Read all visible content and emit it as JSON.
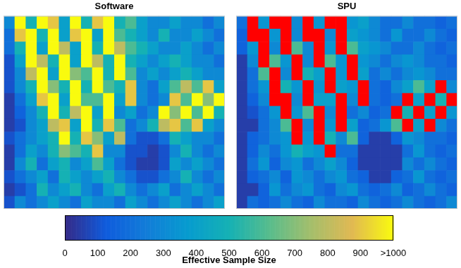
{
  "chart_data": [
    {
      "type": "heatmap",
      "title": "Software",
      "tick_labels": false,
      "cells": [
        [
          300,
          1000,
          500,
          1000,
          900,
          400,
          1000,
          500,
          900,
          1000,
          500,
          600,
          400,
          300,
          300,
          400,
          300,
          300,
          200,
          300
        ],
        [
          200,
          900,
          1000,
          500,
          1000,
          400,
          900,
          1000,
          400,
          1000,
          600,
          500,
          400,
          300,
          500,
          300,
          300,
          400,
          300,
          200
        ],
        [
          200,
          500,
          1000,
          400,
          1000,
          800,
          400,
          1000,
          500,
          1000,
          800,
          600,
          500,
          400,
          300,
          300,
          400,
          300,
          200,
          300
        ],
        [
          100,
          400,
          1000,
          800,
          500,
          1000,
          400,
          1000,
          800,
          500,
          1000,
          500,
          400,
          300,
          400,
          500,
          400,
          300,
          300,
          200
        ],
        [
          100,
          300,
          800,
          1000,
          400,
          1000,
          700,
          600,
          1000,
          500,
          1000,
          600,
          300,
          400,
          300,
          400,
          500,
          400,
          300,
          300
        ],
        [
          100,
          300,
          500,
          1000,
          700,
          500,
          1000,
          500,
          1000,
          600,
          500,
          900,
          300,
          200,
          400,
          600,
          800,
          600,
          900,
          400
        ],
        [
          50,
          200,
          400,
          900,
          1000,
          400,
          1000,
          600,
          600,
          1000,
          400,
          900,
          300,
          200,
          300,
          900,
          600,
          1000,
          700,
          1000
        ],
        [
          50,
          150,
          300,
          500,
          1000,
          500,
          800,
          1000,
          400,
          1000,
          300,
          400,
          200,
          300,
          1000,
          700,
          1000,
          600,
          1000,
          500
        ],
        [
          50,
          100,
          300,
          400,
          800,
          900,
          400,
          1000,
          500,
          900,
          600,
          200,
          300,
          500,
          800,
          900,
          600,
          900,
          400,
          300
        ],
        [
          100,
          200,
          300,
          400,
          500,
          1000,
          500,
          900,
          700,
          400,
          800,
          200,
          100,
          100,
          200,
          500,
          400,
          300,
          300,
          200
        ],
        [
          50,
          200,
          400,
          300,
          500,
          700,
          600,
          500,
          900,
          300,
          300,
          100,
          100,
          50,
          100,
          300,
          500,
          300,
          200,
          300
        ],
        [
          50,
          300,
          500,
          200,
          400,
          500,
          300,
          400,
          600,
          400,
          200,
          100,
          50,
          50,
          100,
          400,
          300,
          400,
          300,
          200
        ],
        [
          100,
          200,
          300,
          400,
          200,
          500,
          400,
          300,
          400,
          500,
          300,
          200,
          100,
          100,
          200,
          300,
          500,
          300,
          200,
          300
        ],
        [
          50,
          100,
          200,
          500,
          300,
          400,
          500,
          300,
          200,
          400,
          500,
          300,
          200,
          300,
          400,
          200,
          300,
          400,
          300,
          200
        ],
        [
          100,
          300,
          200,
          300,
          400,
          300,
          200,
          400,
          300,
          300,
          200,
          400,
          300,
          200,
          300,
          400,
          300,
          200,
          300,
          400
        ]
      ]
    },
    {
      "type": "heatmap",
      "title": "SPU",
      "tick_labels": false,
      "color": "#ff0000",
      "cells": [
        [
          200,
          null,
          350,
          null,
          null,
          300,
          null,
          350,
          null,
          null,
          350,
          400,
          300,
          200,
          200,
          300,
          200,
          200,
          150,
          200
        ],
        [
          150,
          null,
          null,
          350,
          null,
          300,
          null,
          null,
          300,
          null,
          400,
          350,
          300,
          200,
          350,
          200,
          200,
          300,
          200,
          150
        ],
        [
          150,
          350,
          null,
          300,
          null,
          600,
          300,
          null,
          350,
          null,
          600,
          400,
          350,
          300,
          200,
          200,
          300,
          200,
          150,
          200
        ],
        [
          50,
          300,
          null,
          600,
          350,
          null,
          300,
          null,
          600,
          350,
          null,
          350,
          300,
          200,
          300,
          350,
          300,
          200,
          200,
          150
        ],
        [
          50,
          200,
          600,
          null,
          300,
          null,
          500,
          400,
          null,
          350,
          null,
          400,
          200,
          300,
          200,
          300,
          350,
          300,
          200,
          200
        ],
        [
          50,
          200,
          350,
          null,
          500,
          350,
          null,
          350,
          null,
          400,
          350,
          null,
          200,
          150,
          300,
          400,
          600,
          400,
          null,
          300
        ],
        [
          50,
          150,
          300,
          null,
          null,
          300,
          null,
          400,
          400,
          null,
          300,
          null,
          200,
          150,
          200,
          null,
          400,
          null,
          500,
          null
        ],
        [
          50,
          100,
          200,
          350,
          null,
          350,
          600,
          null,
          300,
          null,
          200,
          300,
          150,
          200,
          null,
          500,
          null,
          400,
          null,
          350
        ],
        [
          50,
          50,
          200,
          300,
          600,
          null,
          300,
          null,
          350,
          null,
          400,
          150,
          200,
          350,
          600,
          null,
          400,
          null,
          300,
          200
        ],
        [
          50,
          150,
          200,
          300,
          350,
          null,
          350,
          null,
          500,
          300,
          600,
          150,
          50,
          50,
          150,
          350,
          300,
          200,
          200,
          150
        ],
        [
          50,
          150,
          300,
          200,
          350,
          500,
          400,
          350,
          null,
          200,
          200,
          50,
          50,
          50,
          50,
          200,
          350,
          200,
          150,
          200
        ],
        [
          50,
          200,
          350,
          150,
          300,
          350,
          200,
          300,
          400,
          300,
          150,
          50,
          50,
          50,
          50,
          300,
          200,
          300,
          200,
          150
        ],
        [
          50,
          150,
          200,
          300,
          150,
          350,
          300,
          200,
          300,
          350,
          200,
          150,
          50,
          50,
          150,
          200,
          350,
          200,
          150,
          200
        ],
        [
          50,
          50,
          150,
          350,
          200,
          300,
          350,
          200,
          150,
          300,
          350,
          200,
          150,
          200,
          300,
          150,
          200,
          300,
          200,
          150
        ],
        [
          50,
          200,
          150,
          200,
          300,
          200,
          150,
          300,
          200,
          200,
          150,
          300,
          200,
          150,
          200,
          300,
          200,
          150,
          200,
          300
        ]
      ]
    }
  ],
  "colorbar": {
    "label": "Effective Sample Size",
    "range": [
      0,
      1000
    ],
    "ticks": [
      0,
      100,
      200,
      300,
      400,
      500,
      600,
      700,
      800,
      900,
      {
        "value": 1000,
        "label": ">1000"
      }
    ]
  }
}
